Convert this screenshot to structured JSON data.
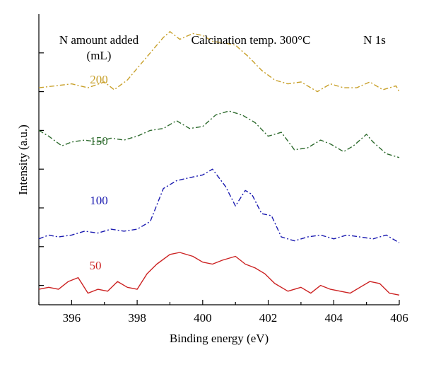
{
  "chart_data": {
    "type": "line",
    "xlabel": "Binding energy (eV)",
    "ylabel": "Intensity (a.u.)",
    "xlim": [
      395,
      406
    ],
    "x_ticks": [
      "396",
      "398",
      "400",
      "402",
      "404",
      "406"
    ],
    "grid": false,
    "annotations": {
      "legend_title_line1": "N amount added",
      "legend_title_line2": "(mL)",
      "condition": "Calcination temp. 300°C",
      "region": "N 1s"
    },
    "series": [
      {
        "name": "200",
        "color": "#c8a02a",
        "dash": "dashdot",
        "x": [
          395.0,
          395.5,
          396.0,
          396.5,
          397.0,
          397.3,
          397.7,
          398.0,
          398.4,
          398.8,
          399.0,
          399.3,
          399.7,
          400.0,
          400.3,
          400.7,
          401.0,
          401.4,
          401.8,
          402.2,
          402.6,
          403.0,
          403.5,
          403.9,
          404.3,
          404.7,
          405.1,
          405.5,
          405.9,
          406.0
        ],
        "y": [
          5.1,
          5.15,
          5.2,
          5.1,
          5.25,
          5.05,
          5.3,
          5.6,
          6.0,
          6.4,
          6.55,
          6.35,
          6.5,
          6.45,
          6.3,
          6.25,
          6.2,
          5.9,
          5.55,
          5.3,
          5.2,
          5.25,
          5.0,
          5.2,
          5.1,
          5.1,
          5.25,
          5.05,
          5.15,
          5.0
        ]
      },
      {
        "name": "150",
        "color": "#2e6b2e",
        "dash": "dashdot",
        "x": [
          395.0,
          395.3,
          395.7,
          396.0,
          396.4,
          396.8,
          397.2,
          397.6,
          398.0,
          398.4,
          398.8,
          399.2,
          399.6,
          400.0,
          400.4,
          400.8,
          401.2,
          401.6,
          402.0,
          402.4,
          402.8,
          403.2,
          403.6,
          403.9,
          404.3,
          404.6,
          405.0,
          405.2,
          405.6,
          406.0
        ],
        "y": [
          4.0,
          3.85,
          3.6,
          3.7,
          3.75,
          3.7,
          3.8,
          3.75,
          3.85,
          4.0,
          4.05,
          4.25,
          4.05,
          4.1,
          4.4,
          4.5,
          4.4,
          4.2,
          3.85,
          3.95,
          3.5,
          3.55,
          3.75,
          3.65,
          3.45,
          3.6,
          3.9,
          3.7,
          3.4,
          3.3
        ]
      },
      {
        "name": "100",
        "color": "#1a1ab0",
        "dash": "dashdot",
        "x": [
          395.0,
          395.3,
          395.6,
          396.0,
          396.4,
          396.8,
          397.2,
          397.6,
          398.0,
          398.4,
          398.8,
          399.2,
          399.6,
          400.0,
          400.3,
          400.7,
          401.0,
          401.3,
          401.5,
          401.8,
          402.1,
          402.4,
          402.8,
          403.2,
          403.6,
          404.0,
          404.4,
          404.8,
          405.2,
          405.6,
          406.0
        ],
        "y": [
          1.2,
          1.3,
          1.25,
          1.3,
          1.4,
          1.35,
          1.45,
          1.4,
          1.45,
          1.65,
          2.5,
          2.7,
          2.78,
          2.85,
          3.0,
          2.55,
          2.05,
          2.45,
          2.35,
          1.85,
          1.8,
          1.25,
          1.15,
          1.25,
          1.3,
          1.2,
          1.3,
          1.25,
          1.2,
          1.3,
          1.1
        ]
      },
      {
        "name": "50",
        "color": "#cc2222",
        "dash": "solid",
        "x": [
          395.0,
          395.3,
          395.6,
          395.9,
          396.2,
          396.5,
          396.8,
          397.1,
          397.4,
          397.7,
          398.0,
          398.3,
          398.6,
          399.0,
          399.3,
          399.7,
          400.0,
          400.3,
          400.6,
          401.0,
          401.3,
          401.6,
          401.9,
          402.2,
          402.6,
          403.0,
          403.3,
          403.6,
          403.9,
          404.2,
          404.5,
          404.8,
          405.1,
          405.4,
          405.7,
          406.0
        ],
        "y": [
          -0.1,
          -0.05,
          -0.1,
          0.1,
          0.2,
          -0.2,
          -0.1,
          -0.15,
          0.1,
          -0.05,
          -0.1,
          0.3,
          0.55,
          0.8,
          0.85,
          0.75,
          0.6,
          0.55,
          0.65,
          0.75,
          0.55,
          0.45,
          0.3,
          0.05,
          -0.15,
          -0.05,
          -0.2,
          0.0,
          -0.1,
          -0.15,
          -0.2,
          -0.05,
          0.1,
          0.05,
          -0.2,
          -0.25
        ]
      }
    ]
  }
}
